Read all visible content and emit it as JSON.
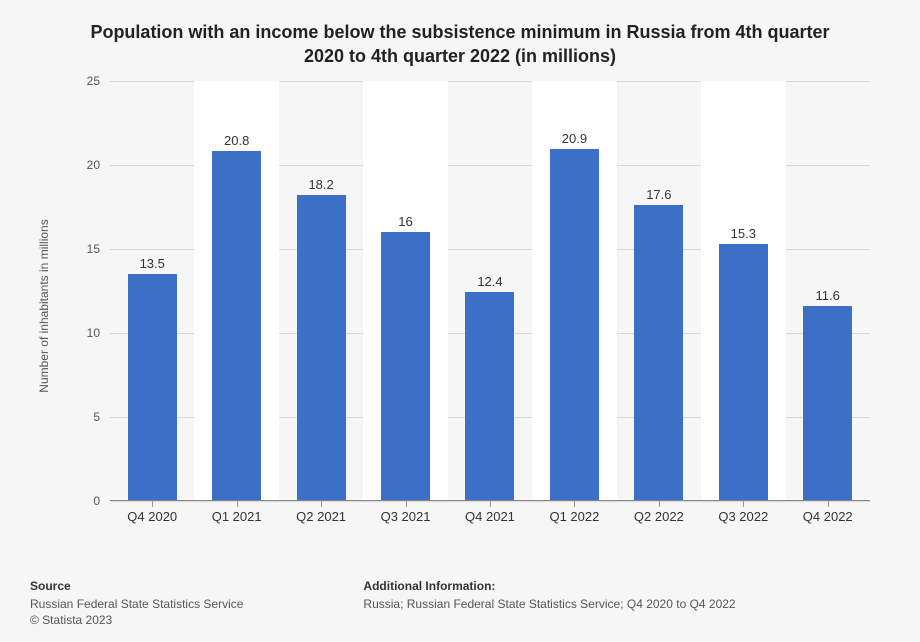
{
  "chart": {
    "type": "bar",
    "title": "Population with an income below the subsistence minimum in Russia from 4th quarter 2020 to 4th quarter 2022 (in millions)",
    "ylabel": "Number of inhabitants in millions",
    "categories": [
      "Q4 2020",
      "Q1 2021",
      "Q2 2021",
      "Q3 2021",
      "Q4 2021",
      "Q1 2022",
      "Q2 2022",
      "Q3 2022",
      "Q4 2022"
    ],
    "values": [
      13.5,
      20.8,
      18.2,
      16,
      12.4,
      20.9,
      17.6,
      15.3,
      11.6
    ],
    "value_labels": [
      "13.5",
      "20.8",
      "18.2",
      "16",
      "12.4",
      "20.9",
      "17.6",
      "15.3",
      "11.6"
    ],
    "bar_color": "#3b70c6",
    "ylim": [
      0,
      25
    ],
    "ytick_step": 5,
    "yticks": [
      0,
      5,
      10,
      15,
      20,
      25
    ],
    "grid_color": "#d8d8d8",
    "background_stripes": true,
    "stripe_color": "#ffffff",
    "plot_background": "#f6f6f6",
    "title_fontsize": 18,
    "label_fontsize": 12,
    "tick_fontsize": 13,
    "bar_width": 0.58
  },
  "footer": {
    "source_heading": "Source",
    "source_line1": "Russian Federal State Statistics Service",
    "source_line2": "© Statista 2023",
    "additional_heading": "Additional Information:",
    "additional_line": "Russia; Russian Federal State Statistics Service; Q4 2020 to Q4 2022"
  }
}
